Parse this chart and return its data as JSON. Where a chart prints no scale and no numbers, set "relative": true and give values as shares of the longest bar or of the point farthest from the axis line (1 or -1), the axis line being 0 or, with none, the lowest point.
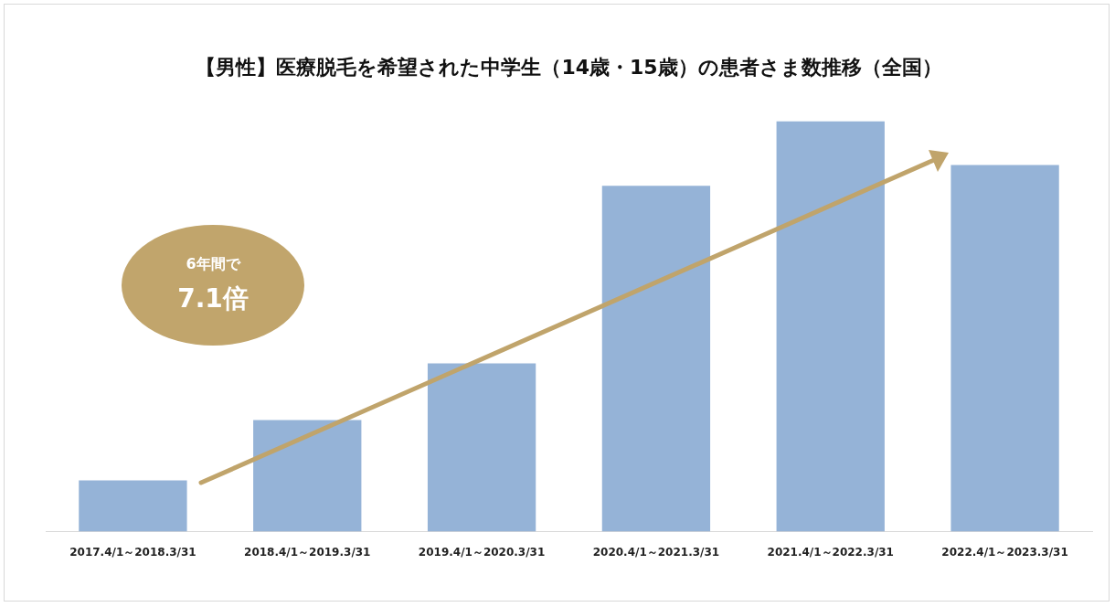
{
  "chart_data": {
    "type": "bar",
    "title": "【男性】医療脱毛を希望された中学生（14歳・15歳）の患者さま数推移（全国）",
    "categories": [
      "2017.4/1～2018.3/31",
      "2018.4/1～2019.3/31",
      "2019.4/1～2020.3/31",
      "2020.4/1～2021.3/31",
      "2021.4/1～2022.3/31",
      "2022.4/1～2023.3/31"
    ],
    "values": [
      0.125,
      0.272,
      0.41,
      0.842,
      1,
      0.893
    ],
    "color": "#95b3d7",
    "relative": true,
    "grid": false,
    "legend": false,
    "annotations": [
      "6年間で",
      "7.1倍"
    ]
  }
}
